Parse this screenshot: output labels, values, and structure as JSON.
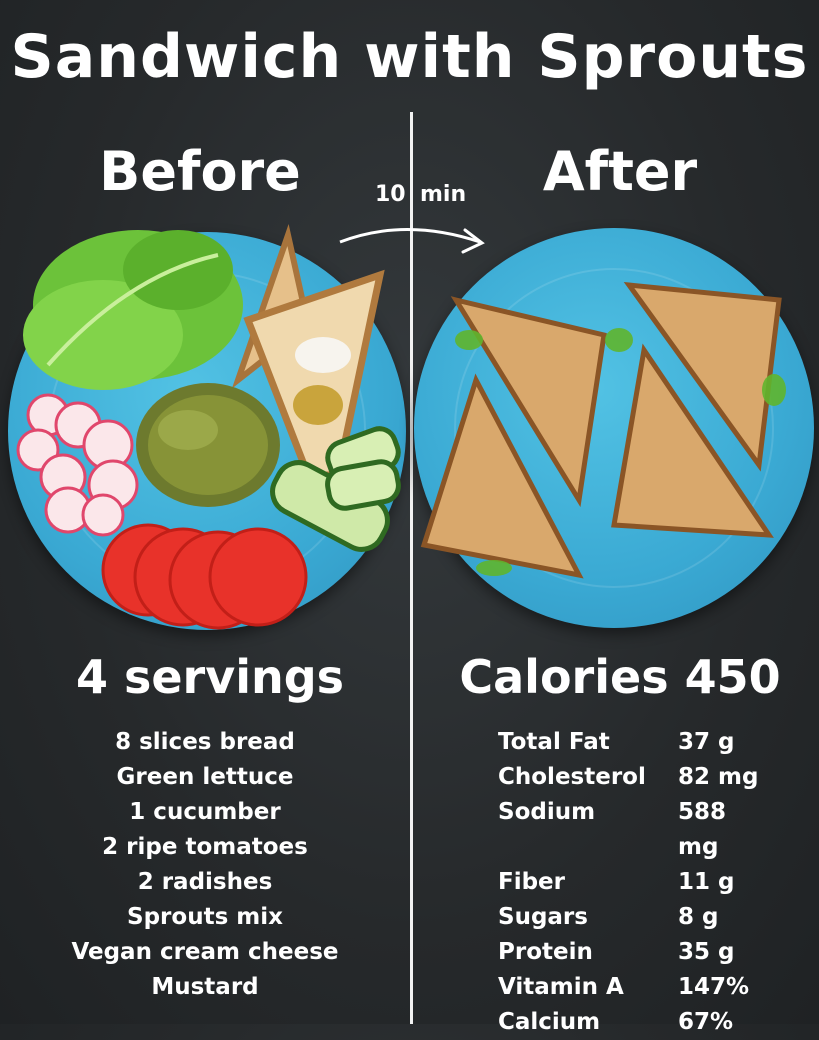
{
  "title": "Sandwich with Sprouts",
  "left": {
    "header": "Before",
    "servings": "4 servings",
    "ingredients": [
      "8 slices bread",
      "Green lettuce",
      "1 cucumber",
      "2 ripe tomatoes",
      "2 radishes",
      "Sprouts mix",
      "Vegan cream cheese",
      "Mustard"
    ]
  },
  "timer": {
    "amount": "10",
    "unit": "min"
  },
  "right": {
    "header": "After",
    "calories": "Calories 450",
    "nutrition": [
      {
        "name": "Total Fat",
        "value": "37 g"
      },
      {
        "name": "Cholesterol",
        "value": "82 mg"
      },
      {
        "name": "Sodium",
        "value": "588 mg"
      },
      {
        "name": "Fiber",
        "value": "11 g"
      },
      {
        "name": "Sugars",
        "value": "8 g"
      },
      {
        "name": "Protein",
        "value": "35 g"
      },
      {
        "name": "Vitamin A",
        "value": "147%"
      },
      {
        "name": "Calcium",
        "value": "67%"
      }
    ]
  },
  "colors": {
    "background": "#2a2d2f",
    "plate": "#3aa9d3",
    "text": "#ffffff"
  }
}
